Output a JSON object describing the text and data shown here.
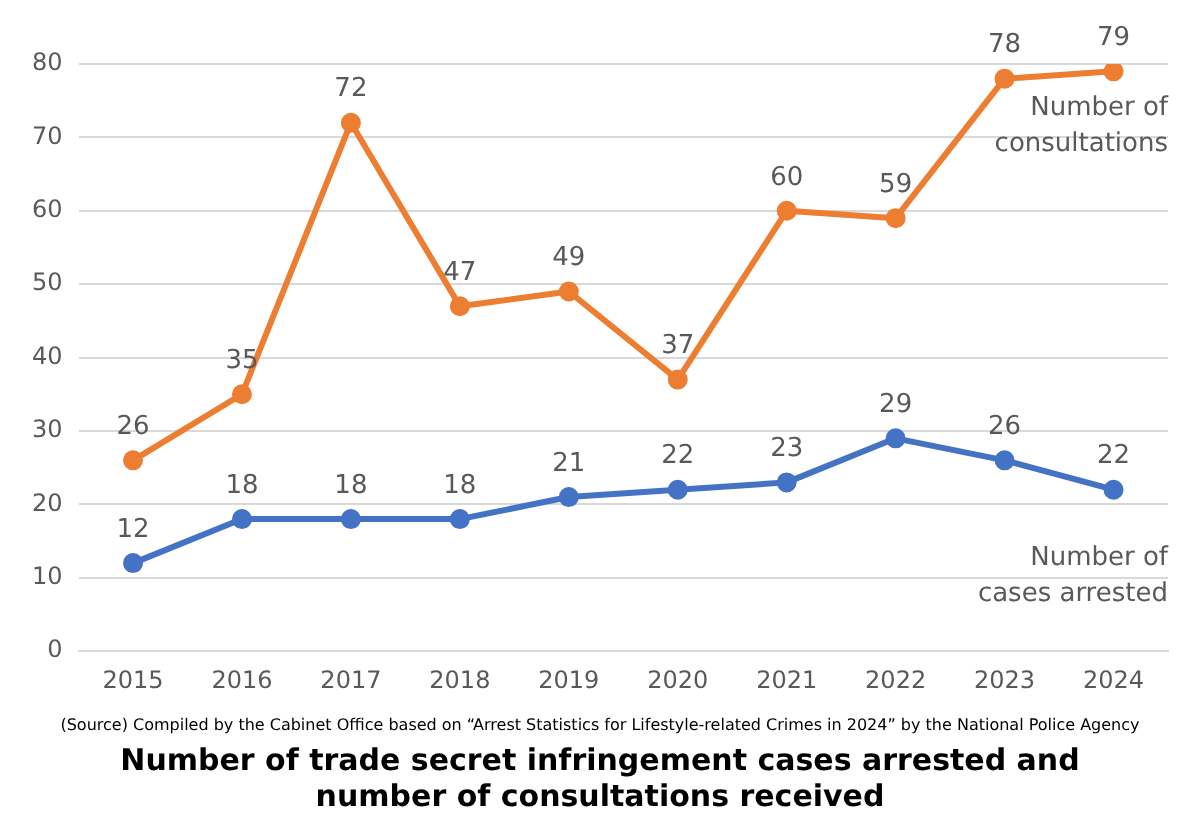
{
  "chart_data": {
    "type": "line",
    "title": "Number of trade secret infringement cases arrested and number of consultations received",
    "categories": [
      "2015",
      "2016",
      "2017",
      "2018",
      "2019",
      "2020",
      "2021",
      "2022",
      "2023",
      "2024"
    ],
    "series": [
      {
        "name": "Number of consultations",
        "color": "#ed7d31",
        "values": [
          26,
          35,
          72,
          47,
          49,
          37,
          60,
          59,
          78,
          79
        ]
      },
      {
        "name": "Number of cases arrested",
        "color": "#4472c4",
        "values": [
          12,
          18,
          18,
          18,
          21,
          22,
          23,
          29,
          26,
          22
        ]
      }
    ],
    "ylim": [
      0,
      80
    ],
    "yticks": [
      0,
      10,
      20,
      30,
      40,
      50,
      60,
      70,
      80
    ],
    "grid": "y",
    "legend": false,
    "marker": "circle",
    "line_style": "solid",
    "data_labels": true,
    "annotations": [
      "(Source) Compiled by the Cabinet Office based on “Arrest Statistics for Lifestyle-related Crimes in 2024” by the National Police Agency"
    ]
  }
}
